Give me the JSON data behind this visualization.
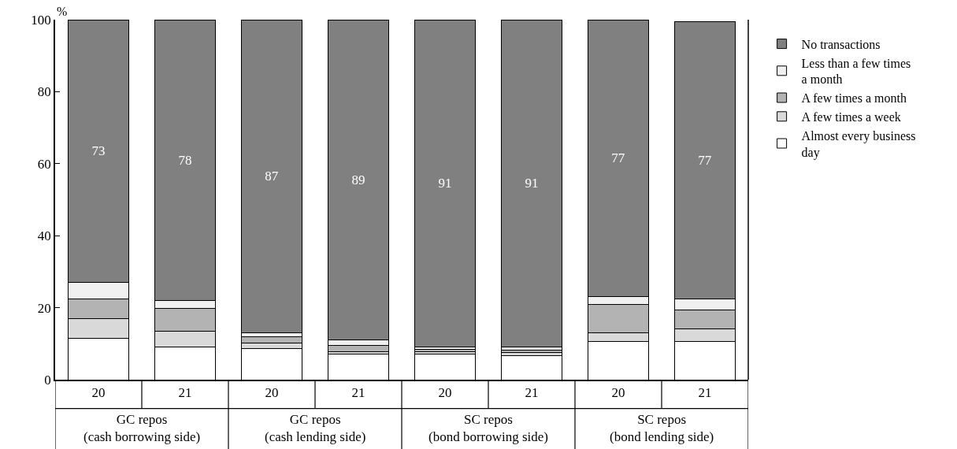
{
  "chart_data": {
    "type": "bar",
    "stacked": true,
    "ylabel": "%",
    "categories": [
      "20",
      "21",
      "20",
      "21",
      "20",
      "21",
      "20",
      "21"
    ],
    "annotations": [
      "GC repos\n(cash borrowing side)",
      "GC repos\n(cash lending side)",
      "SC repos\n(bond borrowing side)",
      "SC repos\n(bond lending side)"
    ],
    "series": [
      {
        "name": "Almost every business day",
        "color": "#ffffff",
        "values": [
          11.5,
          9.0,
          8.6,
          7.2,
          7.2,
          6.7,
          10.7,
          10.7
        ]
      },
      {
        "name": "A few times a week",
        "color": "#d9d9d9",
        "values": [
          5.5,
          4.5,
          1.6,
          0.5,
          0.6,
          0.8,
          2.4,
          3.4
        ]
      },
      {
        "name": "A few times a month",
        "color": "#b3b3b3",
        "values": [
          5.5,
          6.3,
          1.8,
          1.8,
          0.6,
          0.8,
          7.8,
          5.2
        ]
      },
      {
        "name": "Less than a few times a month",
        "color": "#f0f0f0",
        "values": [
          4.5,
          2.2,
          1.0,
          1.5,
          0.6,
          0.7,
          2.1,
          3.2
        ]
      },
      {
        "name": "No transactions",
        "color": "#808080",
        "values": [
          73,
          78,
          87,
          89,
          91,
          91,
          77,
          77
        ],
        "value_labels": [
          "73",
          "78",
          "87",
          "89",
          "91",
          "91",
          "77",
          "77"
        ]
      }
    ],
    "ylim": [
      0,
      100
    ],
    "yticks": [
      0,
      20,
      40,
      60,
      80,
      100
    ],
    "legend": "right"
  }
}
